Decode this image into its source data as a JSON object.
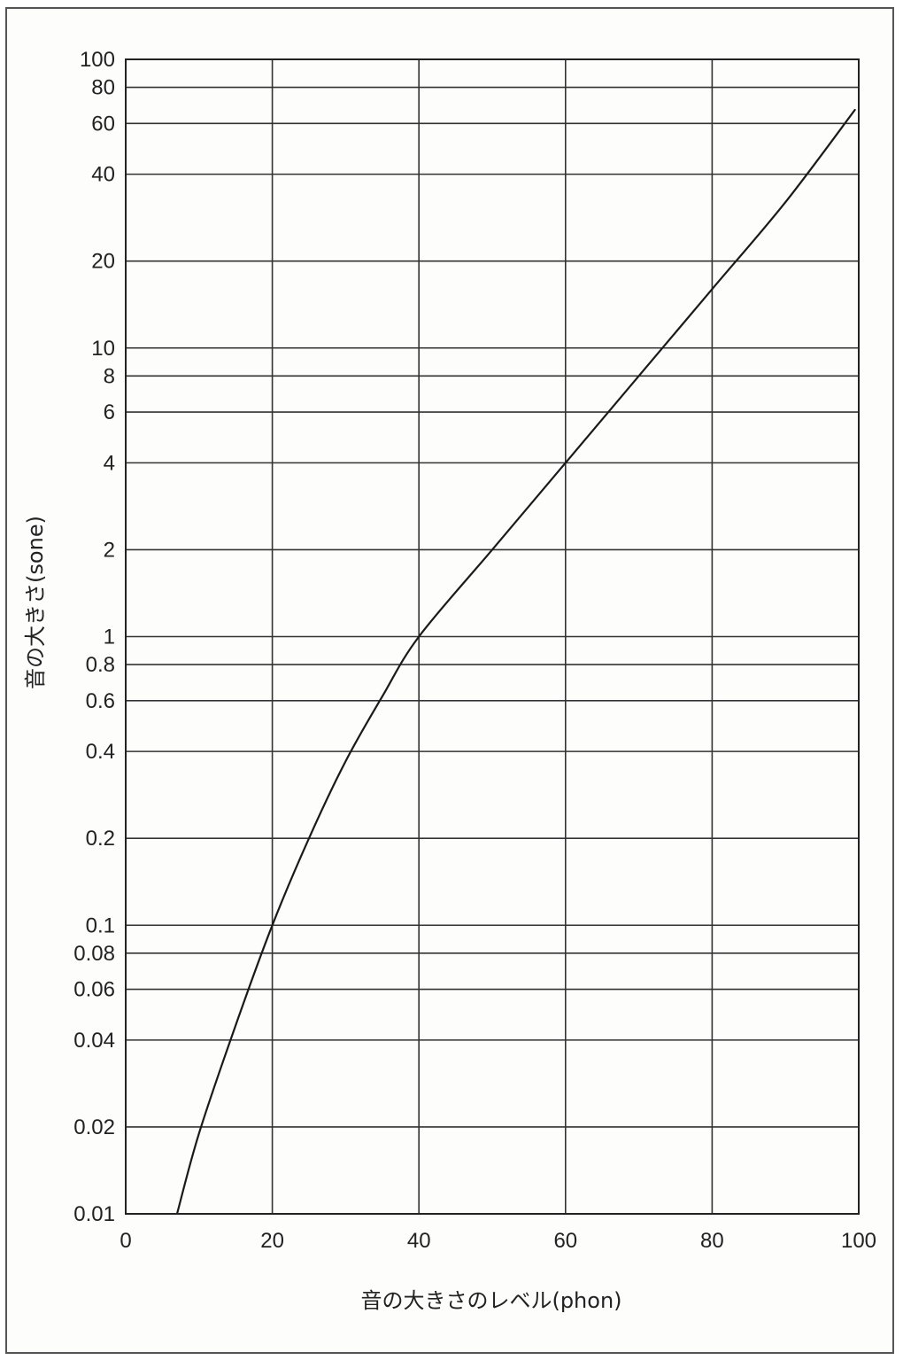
{
  "chart_data": {
    "type": "line",
    "xlabel": "音の大きさのレベル(phon)",
    "ylabel": "音の大きさ(sone)",
    "x_scale": "linear",
    "y_scale": "log",
    "xlim": [
      0,
      100
    ],
    "ylim": [
      0.01,
      100
    ],
    "x_ticks": [
      0,
      20,
      40,
      60,
      80,
      100
    ],
    "x_tick_labels": [
      "0",
      "20",
      "40",
      "60",
      "80",
      "100"
    ],
    "y_ticks": [
      0.01,
      0.02,
      0.04,
      0.06,
      0.08,
      0.1,
      0.2,
      0.4,
      0.6,
      0.8,
      1,
      2,
      4,
      6,
      8,
      10,
      20,
      40,
      60,
      80,
      100
    ],
    "y_tick_labels": [
      "0.01",
      "0.02",
      "0.04",
      "0.06",
      "0.08",
      "0.1",
      "0.2",
      "0.4",
      "0.6",
      "0.8",
      "1",
      "2",
      "4",
      "6",
      "8",
      "10",
      "20",
      "40",
      "60",
      "80",
      "100"
    ],
    "grid": true,
    "series": [
      {
        "x": [
          7,
          10,
          15,
          20,
          25,
          30,
          35,
          40,
          50,
          60,
          70,
          80,
          90,
          99.5
        ],
        "y": [
          0.01,
          0.019,
          0.045,
          0.1,
          0.2,
          0.37,
          0.62,
          1,
          2,
          4,
          8,
          16,
          32,
          67
        ],
        "color": "#1a1a1a"
      }
    ]
  }
}
